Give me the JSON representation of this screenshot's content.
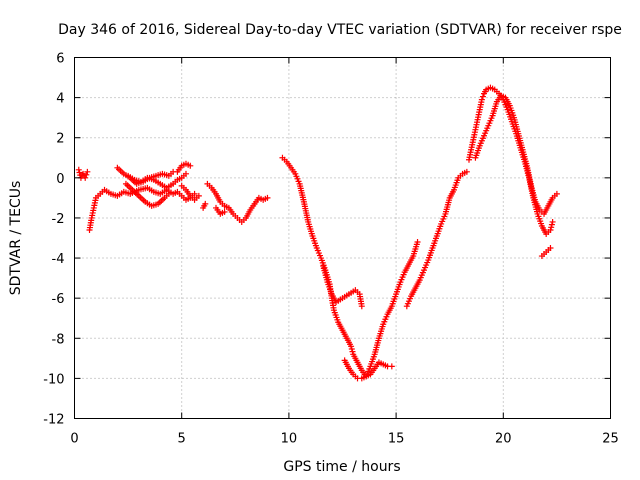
{
  "chart_data": {
    "type": "scatter",
    "title": "Day 346 of 2016, Sidereal Day-to-day VTEC variation (SDTVAR) for receiver rspe",
    "xlabel": "GPS time / hours",
    "ylabel": "SDTVAR / TECUs",
    "xlim": [
      0,
      25
    ],
    "ylim": [
      -12,
      6
    ],
    "xticks": [
      0,
      5,
      10,
      15,
      20,
      25
    ],
    "yticks": [
      -12,
      -10,
      -8,
      -6,
      -4,
      -2,
      0,
      2,
      4,
      6
    ],
    "xtick_labels": [
      "0",
      "5",
      "10",
      "15",
      "20",
      "25"
    ],
    "ytick_labels": [
      "-12",
      "-10",
      "-8",
      "-6",
      "-4",
      "-2",
      "0",
      "2",
      "4",
      "6"
    ],
    "grid": true,
    "marker": "+",
    "color": "#ff0000",
    "series": [
      {
        "segments": [
          [
            [
              0.2,
              0.4
            ],
            [
              0.3,
              0.0
            ],
            [
              0.4,
              0.2
            ],
            [
              0.5,
              0.0
            ],
            [
              0.6,
              0.3
            ]
          ],
          [
            [
              0.7,
              -2.6
            ],
            [
              0.8,
              -2.0
            ],
            [
              0.9,
              -1.5
            ],
            [
              1.0,
              -1.0
            ],
            [
              1.2,
              -0.8
            ],
            [
              1.4,
              -0.6
            ],
            [
              1.7,
              -0.8
            ],
            [
              2.0,
              -0.9
            ],
            [
              2.3,
              -0.7
            ],
            [
              2.6,
              -0.8
            ],
            [
              3.0,
              -0.6
            ],
            [
              3.4,
              -0.5
            ],
            [
              3.7,
              -0.7
            ],
            [
              4.0,
              -0.8
            ],
            [
              4.3,
              -0.6
            ],
            [
              4.6,
              -0.8
            ],
            [
              4.8,
              -0.7
            ],
            [
              5.0,
              -0.9
            ],
            [
              5.2,
              -1.1
            ],
            [
              5.4,
              -1.0
            ],
            [
              5.6,
              -0.8
            ]
          ],
          [
            [
              2.0,
              0.5
            ],
            [
              2.3,
              0.2
            ],
            [
              2.6,
              0.0
            ],
            [
              2.9,
              -0.3
            ],
            [
              3.2,
              -0.2
            ],
            [
              3.5,
              0.0
            ],
            [
              3.8,
              0.1
            ],
            [
              4.1,
              0.2
            ],
            [
              4.4,
              0.1
            ],
            [
              4.6,
              0.3
            ],
            [
              4.8,
              0.3
            ],
            [
              5.0,
              0.6
            ],
            [
              5.2,
              0.7
            ],
            [
              5.4,
              0.6
            ]
          ],
          [
            [
              2.4,
              -0.3
            ],
            [
              2.7,
              -0.6
            ],
            [
              3.0,
              -0.9
            ],
            [
              3.3,
              -1.2
            ],
            [
              3.6,
              -1.4
            ],
            [
              3.9,
              -1.3
            ],
            [
              4.2,
              -1.0
            ],
            [
              4.4,
              -0.8
            ]
          ],
          [
            [
              2.5,
              0.1
            ],
            [
              2.8,
              -0.1
            ],
            [
              3.1,
              -0.2
            ],
            [
              3.4,
              0.0
            ],
            [
              3.7,
              -0.1
            ],
            [
              4.0,
              -0.3
            ],
            [
              4.3,
              -0.5
            ],
            [
              4.6,
              -0.3
            ],
            [
              4.8,
              -0.1
            ],
            [
              5.0,
              0.0
            ],
            [
              5.2,
              0.2
            ]
          ],
          [
            [
              5.0,
              -0.4
            ],
            [
              5.2,
              -0.6
            ],
            [
              5.4,
              -0.9
            ],
            [
              5.6,
              -1.1
            ],
            [
              5.8,
              -0.9
            ]
          ],
          [
            [
              6.0,
              -1.5
            ],
            [
              6.1,
              -1.3
            ]
          ],
          [
            [
              6.2,
              -0.3
            ],
            [
              6.4,
              -0.5
            ],
            [
              6.6,
              -0.8
            ],
            [
              6.8,
              -1.2
            ],
            [
              7.0,
              -1.4
            ],
            [
              7.2,
              -1.5
            ],
            [
              7.4,
              -1.8
            ],
            [
              7.6,
              -2.0
            ],
            [
              7.8,
              -2.2
            ],
            [
              8.0,
              -2.0
            ],
            [
              8.2,
              -1.6
            ],
            [
              8.4,
              -1.3
            ],
            [
              8.6,
              -1.0
            ],
            [
              8.8,
              -1.1
            ],
            [
              9.0,
              -1.0
            ]
          ],
          [
            [
              6.6,
              -1.5
            ],
            [
              6.8,
              -1.8
            ],
            [
              7.0,
              -1.7
            ]
          ],
          [
            [
              9.7,
              1.0
            ],
            [
              9.9,
              0.8
            ],
            [
              10.1,
              0.5
            ],
            [
              10.3,
              0.2
            ],
            [
              10.5,
              -0.3
            ],
            [
              10.7,
              -1.2
            ],
            [
              10.9,
              -2.2
            ],
            [
              11.1,
              -2.9
            ],
            [
              11.3,
              -3.5
            ],
            [
              11.5,
              -4.0
            ],
            [
              11.7,
              -4.6
            ],
            [
              11.9,
              -5.3
            ],
            [
              12.0,
              -6.0
            ],
            [
              12.1,
              -6.6
            ],
            [
              12.3,
              -7.2
            ],
            [
              12.5,
              -7.6
            ],
            [
              12.7,
              -8.0
            ],
            [
              12.9,
              -8.4
            ],
            [
              13.0,
              -8.8
            ],
            [
              13.2,
              -9.2
            ],
            [
              13.4,
              -9.6
            ],
            [
              13.6,
              -9.9
            ],
            [
              13.8,
              -9.8
            ],
            [
              14.0,
              -9.5
            ],
            [
              14.2,
              -9.2
            ],
            [
              14.4,
              -9.3
            ],
            [
              14.6,
              -9.4
            ],
            [
              14.8,
              -9.4
            ]
          ],
          [
            [
              11.6,
              -4.4
            ],
            [
              11.8,
              -5.2
            ],
            [
              12.0,
              -5.8
            ],
            [
              12.2,
              -6.2
            ],
            [
              12.5,
              -6.0
            ],
            [
              12.8,
              -5.8
            ],
            [
              13.1,
              -5.6
            ],
            [
              13.3,
              -5.8
            ],
            [
              13.4,
              -6.4
            ]
          ],
          [
            [
              12.6,
              -9.1
            ],
            [
              12.8,
              -9.5
            ],
            [
              13.0,
              -9.8
            ],
            [
              13.2,
              -10.0
            ],
            [
              13.4,
              -10.0
            ],
            [
              13.6,
              -9.9
            ],
            [
              13.8,
              -9.4
            ],
            [
              14.0,
              -8.8
            ],
            [
              14.2,
              -8.0
            ],
            [
              14.4,
              -7.3
            ],
            [
              14.6,
              -6.8
            ],
            [
              14.8,
              -6.4
            ],
            [
              15.0,
              -5.8
            ],
            [
              15.2,
              -5.2
            ],
            [
              15.4,
              -4.7
            ],
            [
              15.6,
              -4.3
            ],
            [
              15.8,
              -3.9
            ],
            [
              16.0,
              -3.2
            ]
          ],
          [
            [
              15.5,
              -6.4
            ],
            [
              15.7,
              -5.9
            ],
            [
              15.9,
              -5.5
            ],
            [
              16.1,
              -5.1
            ],
            [
              16.3,
              -4.6
            ],
            [
              16.5,
              -4.1
            ],
            [
              16.7,
              -3.5
            ],
            [
              16.9,
              -2.9
            ],
            [
              17.1,
              -2.3
            ],
            [
              17.3,
              -1.8
            ],
            [
              17.5,
              -1.0
            ],
            [
              17.7,
              -0.6
            ],
            [
              17.9,
              0.0
            ],
            [
              18.1,
              0.2
            ],
            [
              18.3,
              0.3
            ]
          ],
          [
            [
              18.4,
              0.9
            ],
            [
              18.5,
              1.4
            ],
            [
              18.6,
              1.9
            ],
            [
              18.7,
              2.4
            ],
            [
              18.8,
              2.9
            ],
            [
              18.9,
              3.4
            ],
            [
              19.0,
              3.9
            ],
            [
              19.1,
              4.2
            ],
            [
              19.2,
              4.4
            ],
            [
              19.4,
              4.5
            ],
            [
              19.6,
              4.4
            ],
            [
              19.8,
              4.2
            ],
            [
              20.0,
              3.9
            ],
            [
              20.2,
              3.4
            ],
            [
              20.4,
              2.8
            ],
            [
              20.6,
              2.2
            ],
            [
              20.8,
              1.5
            ],
            [
              21.0,
              0.8
            ],
            [
              21.2,
              0.0
            ],
            [
              21.4,
              -1.0
            ],
            [
              21.6,
              -1.8
            ],
            [
              21.8,
              -2.4
            ],
            [
              22.0,
              -2.8
            ],
            [
              22.2,
              -2.6
            ],
            [
              22.3,
              -2.2
            ]
          ],
          [
            [
              18.7,
              1.0
            ],
            [
              18.9,
              1.6
            ],
            [
              19.1,
              2.1
            ],
            [
              19.3,
              2.6
            ],
            [
              19.5,
              3.1
            ],
            [
              19.7,
              3.8
            ],
            [
              19.9,
              4.1
            ],
            [
              20.1,
              4.0
            ],
            [
              20.3,
              3.6
            ],
            [
              20.5,
              3.0
            ],
            [
              20.7,
              2.2
            ],
            [
              20.9,
              1.4
            ],
            [
              21.1,
              0.6
            ],
            [
              21.3,
              -0.4
            ],
            [
              21.5,
              -1.2
            ],
            [
              21.7,
              -1.6
            ],
            [
              21.9,
              -1.8
            ],
            [
              22.1,
              -1.4
            ],
            [
              22.3,
              -1.0
            ],
            [
              22.5,
              -0.8
            ]
          ],
          [
            [
              21.8,
              -3.9
            ],
            [
              22.0,
              -3.7
            ],
            [
              22.2,
              -3.5
            ]
          ]
        ]
      }
    ]
  }
}
